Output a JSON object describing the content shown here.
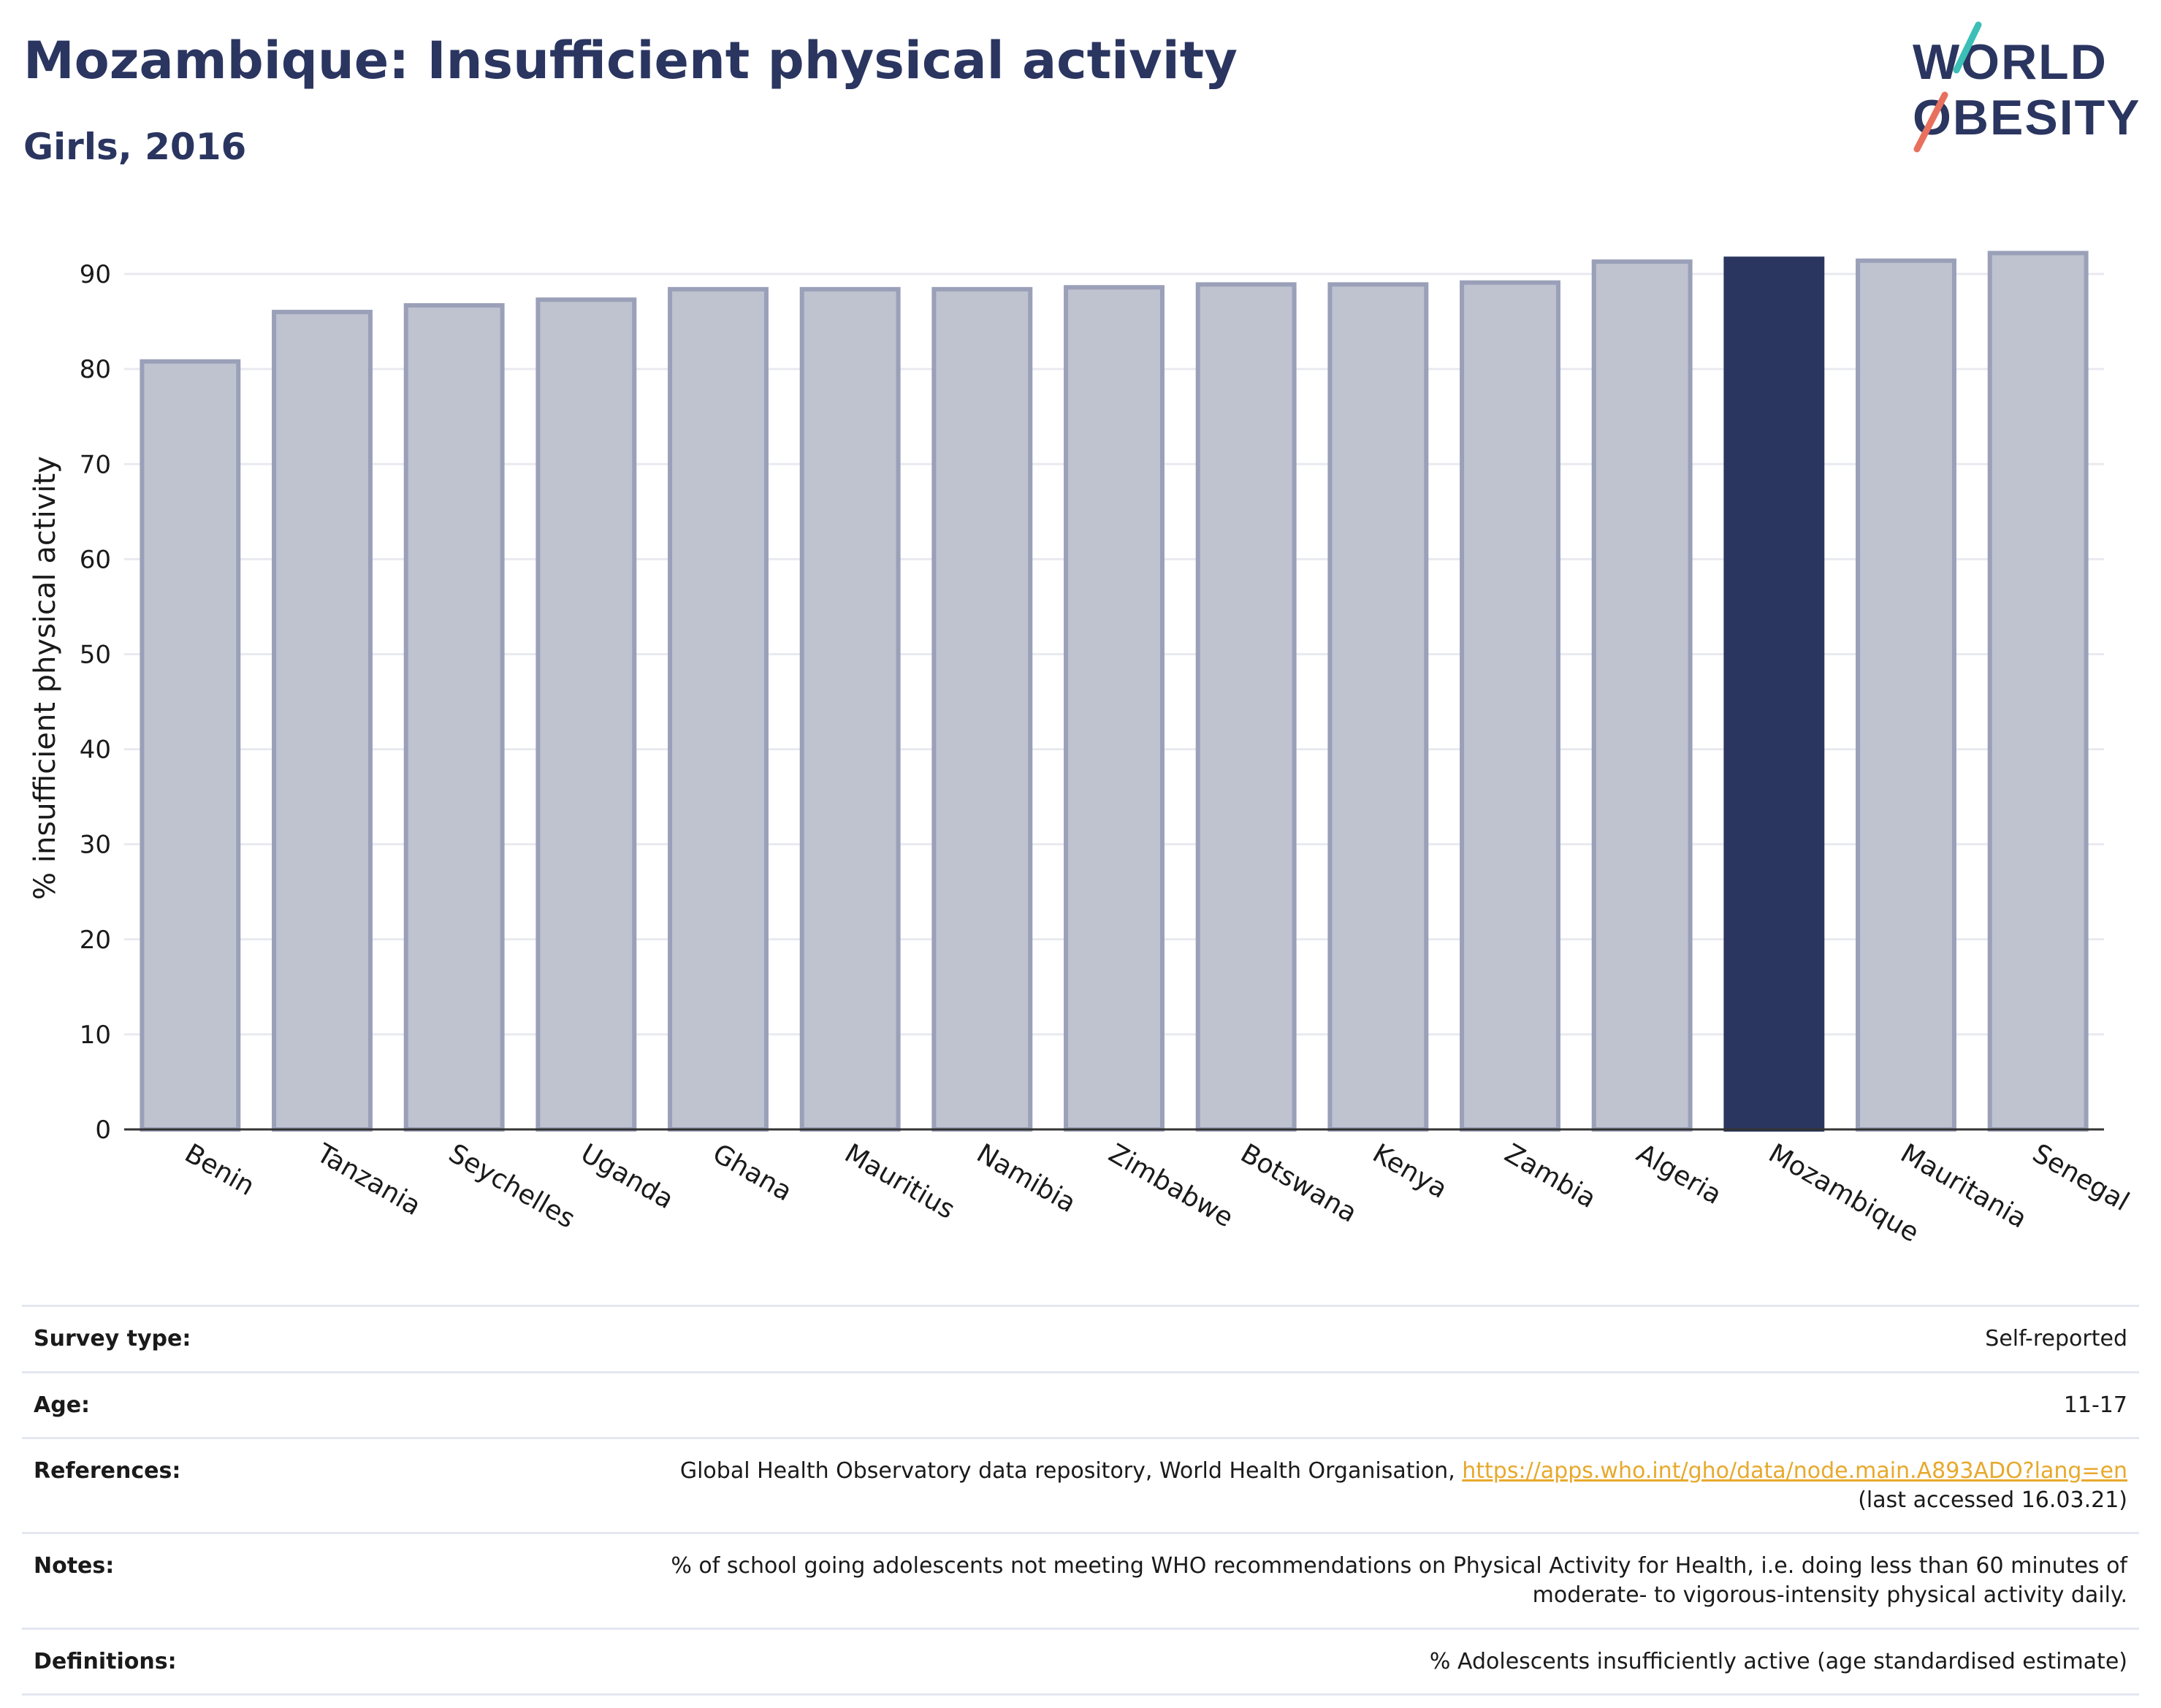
{
  "header": {
    "title": "Mozambique: Insufficient physical activity",
    "subtitle": "Girls, 2016"
  },
  "logo": {
    "line1": "WORLD",
    "line2": "OBESITY"
  },
  "colors": {
    "title": "#2a3560",
    "bar_default_fill": "#bfc2cf",
    "bar_default_stroke": "#9aa0b8",
    "bar_highlight": "#2a3560",
    "link": "#e7a92c",
    "grid": "#e8eaf0",
    "logo_teal": "#3bbfb6",
    "logo_coral": "#e8705e"
  },
  "chart_data": {
    "type": "bar",
    "ylabel": "% insufficient physical activity",
    "ylim": [
      0,
      95
    ],
    "yticks": [
      0,
      10,
      20,
      30,
      40,
      50,
      60,
      70,
      80,
      90
    ],
    "grid": true,
    "highlight": "Mozambique",
    "categories": [
      "Benin",
      "Tanzania",
      "Seychelles",
      "Uganda",
      "Ghana",
      "Mauritius",
      "Namibia",
      "Zimbabwe",
      "Botswana",
      "Kenya",
      "Zambia",
      "Algeria",
      "Mozambique",
      "Mauritania",
      "Senegal"
    ],
    "values": [
      80.8,
      86.0,
      86.7,
      87.3,
      88.4,
      88.4,
      88.4,
      88.6,
      88.9,
      88.9,
      89.1,
      91.3,
      91.6,
      91.4,
      92.2
    ]
  },
  "info": {
    "survey_type": {
      "label": "Survey type:",
      "value": "Self-reported"
    },
    "age": {
      "label": "Age:",
      "value": "11-17"
    },
    "references": {
      "label": "References:",
      "text": "Global Health Observatory data repository, World Health Organisation, ",
      "link": "https://apps.who.int/gho/data/node.main.A893ADO?lang=en",
      "accessed": "(last accessed 16.03.21)"
    },
    "notes": {
      "label": "Notes:",
      "line1": "% of school going adolescents not meeting WHO recommendations on Physical Activity for Health, i.e. doing less than 60 minutes of",
      "line2": "moderate- to vigorous-intensity physical activity daily."
    },
    "definitions": {
      "label": "Definitions:",
      "value": "% Adolescents insufficiently active (age standardised estimate)"
    }
  }
}
